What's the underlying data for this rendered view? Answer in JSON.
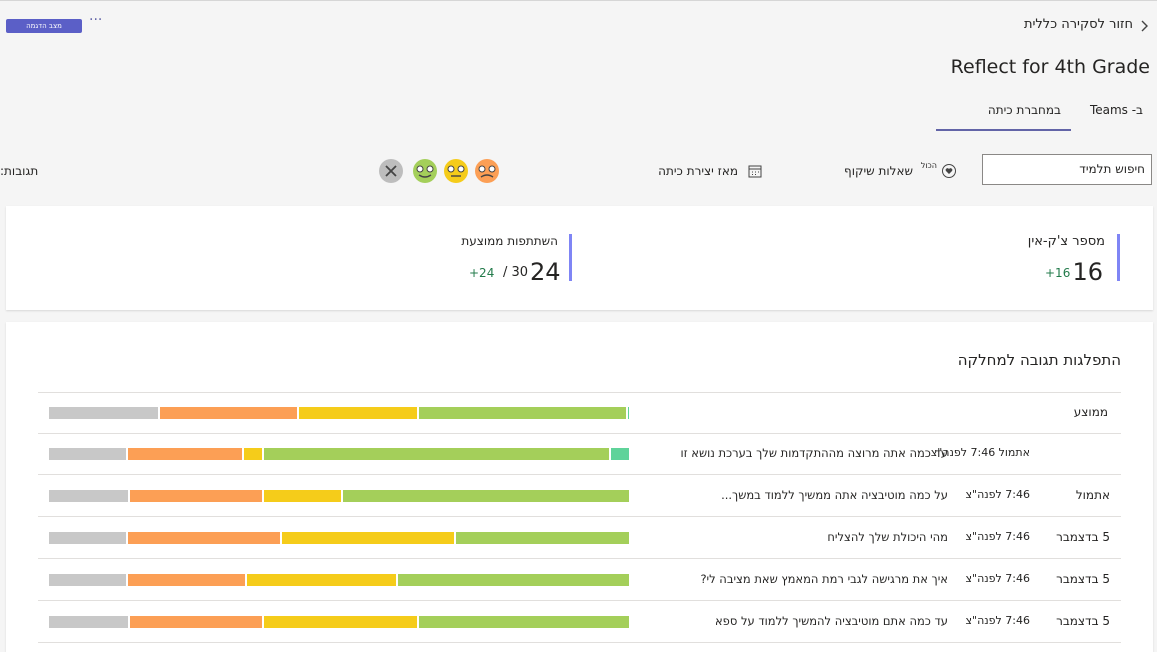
{
  "header": {
    "demo_button": "מצב הדגמה",
    "more": "···",
    "back": "חזור לסקירה כללית",
    "title": "Reflect for 4th Grade",
    "tabs": [
      "ב- Teams",
      "במחברת כיתה"
    ]
  },
  "toolbar": {
    "search": "חיפוש תלמיד",
    "questions": "שאלות שיקוף",
    "questions_badge": "הכול",
    "date_range": "מאז יצירת כיתה",
    "responses": "תגובות:"
  },
  "summary": {
    "checkins": {
      "label": "מספר צ'ק-אין",
      "value": "16",
      "change": "+16"
    },
    "participation": {
      "label": "השתתפות ממוצעת",
      "value": "24",
      "total": "/ 30",
      "change": "+24"
    }
  },
  "distribution": {
    "title": "התפלגות תגובה למחלקה",
    "colors": [
      "#5fd39a",
      "#a4cf5a",
      "#f5cc1a",
      "#fc9f55",
      "#c8c8c8"
    ],
    "average": {
      "label": "ממוצע",
      "values": [
        0.5,
        36,
        20.5,
        24,
        19
      ]
    },
    "rows": [
      {
        "time": "אתמול 7:46 לפנה\"צ",
        "question": "עד כמה אתה מרוצה מההתקדמות שלך בערכת נושא זו",
        "values": [
          3.5,
          59.5,
          3.5,
          20,
          13.5
        ]
      },
      {
        "date": "אתמול",
        "time": "7:46 לפנה\"צ",
        "question": "על כמה מוטיבציה אתה ממשיך ללמוד במשך...",
        "values": [
          0,
          49.5,
          13.5,
          23,
          14
        ]
      },
      {
        "date": "5 בדצמבר",
        "time": "7:46 לפנה\"צ",
        "question": "מהי היכולת שלך להצליח",
        "values": [
          0,
          30,
          30,
          26.5,
          13.5
        ]
      },
      {
        "date": "5 בדצמבר",
        "time": "7:46 לפנה\"צ",
        "question": "איך את מרגישה לגבי רמת המאמץ שאת מציבה לי?",
        "values": [
          0,
          40,
          26,
          20.5,
          13.5
        ]
      },
      {
        "date": "5 בדצמבר",
        "time": "7:46 לפנה\"צ",
        "question": "עד כמה אתם מוטיבציה להמשיך ללמוד על ספא",
        "values": [
          0,
          36.5,
          26.5,
          23,
          14
        ]
      }
    ]
  }
}
